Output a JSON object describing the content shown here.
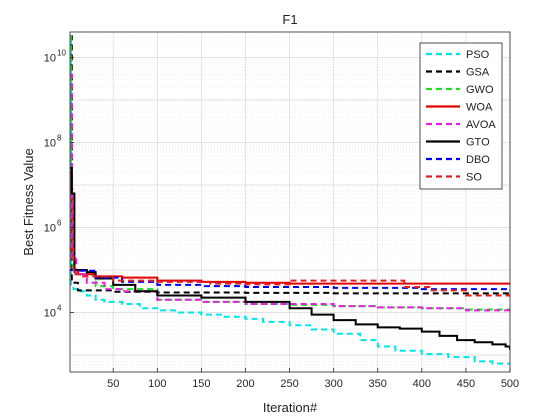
{
  "chart_data": {
    "type": "line",
    "title": "F1",
    "xlabel": "Iteration#",
    "ylabel": "Best Fitness Value",
    "xlim": [
      1,
      500
    ],
    "ylim_log10": [
      2.6,
      10.6
    ],
    "yscale": "log",
    "grid": true,
    "minor_grid": true,
    "legend_position": "top-right",
    "x_ticks": [
      50,
      100,
      150,
      200,
      250,
      300,
      350,
      400,
      450,
      500
    ],
    "x_tick_labels": [
      "50",
      "100",
      "150",
      "200",
      "250",
      "300",
      "350",
      "400",
      "450",
      "500"
    ],
    "y_tick_exponents": [
      4,
      6,
      8,
      10
    ],
    "y_tick_base": "10",
    "series": [
      {
        "name": "PSO",
        "color": "#00e5e5",
        "dash": "dashed",
        "points": [
          [
            1,
            10.4
          ],
          [
            2,
            4.6
          ],
          [
            5,
            4.55
          ],
          [
            10,
            4.5
          ],
          [
            20,
            4.4
          ],
          [
            30,
            4.3
          ],
          [
            40,
            4.25
          ],
          [
            60,
            4.2
          ],
          [
            80,
            4.1
          ],
          [
            100,
            4.05
          ],
          [
            120,
            4.0
          ],
          [
            150,
            3.95
          ],
          [
            175,
            3.9
          ],
          [
            200,
            3.85
          ],
          [
            220,
            3.78
          ],
          [
            250,
            3.7
          ],
          [
            275,
            3.6
          ],
          [
            300,
            3.5
          ],
          [
            330,
            3.35
          ],
          [
            350,
            3.2
          ],
          [
            370,
            3.1
          ],
          [
            400,
            3.02
          ],
          [
            430,
            2.95
          ],
          [
            460,
            2.85
          ],
          [
            480,
            2.8
          ],
          [
            500,
            2.78
          ]
        ]
      },
      {
        "name": "GSA",
        "color": "#000000",
        "dash": "dashed",
        "points": [
          [
            1,
            10.5
          ],
          [
            3,
            4.7
          ],
          [
            10,
            4.52
          ],
          [
            50,
            4.49
          ],
          [
            100,
            4.47
          ],
          [
            200,
            4.46
          ],
          [
            300,
            4.45
          ],
          [
            400,
            4.45
          ],
          [
            500,
            4.45
          ]
        ]
      },
      {
        "name": "GWO",
        "color": "#22dd22",
        "dash": "dashed",
        "points": [
          [
            1,
            10.5
          ],
          [
            2,
            6.9
          ],
          [
            4,
            5.0
          ],
          [
            10,
            4.9
          ],
          [
            30,
            4.62
          ],
          [
            50,
            4.55
          ],
          [
            100,
            4.3
          ],
          [
            150,
            4.25
          ],
          [
            200,
            4.2
          ],
          [
            250,
            4.18
          ],
          [
            300,
            4.15
          ],
          [
            350,
            4.12
          ],
          [
            400,
            4.1
          ],
          [
            450,
            4.07
          ],
          [
            500,
            4.05
          ]
        ]
      },
      {
        "name": "WOA",
        "color": "#e00000",
        "dash": "solid",
        "points": [
          [
            1,
            7.3
          ],
          [
            3,
            5.3
          ],
          [
            6,
            4.95
          ],
          [
            10,
            4.9
          ],
          [
            30,
            4.85
          ],
          [
            60,
            4.82
          ],
          [
            100,
            4.75
          ],
          [
            150,
            4.72
          ],
          [
            200,
            4.7
          ],
          [
            250,
            4.68
          ],
          [
            300,
            4.68
          ],
          [
            400,
            4.68
          ],
          [
            500,
            4.68
          ]
        ]
      },
      {
        "name": "AVOA",
        "color": "#e61ee6",
        "dash": "dashed",
        "points": [
          [
            1,
            9.6
          ],
          [
            3,
            5.3
          ],
          [
            8,
            4.9
          ],
          [
            20,
            4.7
          ],
          [
            40,
            4.55
          ],
          [
            60,
            4.5
          ],
          [
            100,
            4.3
          ],
          [
            150,
            4.25
          ],
          [
            200,
            4.2
          ],
          [
            250,
            4.2
          ],
          [
            300,
            4.15
          ],
          [
            350,
            4.12
          ],
          [
            400,
            4.1
          ],
          [
            450,
            4.05
          ],
          [
            500,
            4.04
          ]
        ]
      },
      {
        "name": "GTO",
        "color": "#000000",
        "dash": "solid",
        "points": [
          [
            1,
            7.4
          ],
          [
            3,
            6.8
          ],
          [
            6,
            5.0
          ],
          [
            10,
            5.0
          ],
          [
            20,
            4.95
          ],
          [
            30,
            4.8
          ],
          [
            50,
            4.65
          ],
          [
            75,
            4.5
          ],
          [
            100,
            4.4
          ],
          [
            150,
            4.35
          ],
          [
            200,
            4.25
          ],
          [
            250,
            4.1
          ],
          [
            275,
            3.95
          ],
          [
            300,
            3.82
          ],
          [
            325,
            3.72
          ],
          [
            350,
            3.65
          ],
          [
            375,
            3.62
          ],
          [
            400,
            3.55
          ],
          [
            420,
            3.45
          ],
          [
            440,
            3.35
          ],
          [
            460,
            3.3
          ],
          [
            480,
            3.25
          ],
          [
            495,
            3.2
          ],
          [
            500,
            3.12
          ]
        ]
      },
      {
        "name": "DBO",
        "color": "#0000ee",
        "dash": "dashed",
        "points": [
          [
            1,
            5.0
          ],
          [
            10,
            4.98
          ],
          [
            30,
            4.82
          ],
          [
            60,
            4.72
          ],
          [
            100,
            4.65
          ],
          [
            150,
            4.62
          ],
          [
            200,
            4.6
          ],
          [
            300,
            4.58
          ],
          [
            400,
            4.55
          ],
          [
            500,
            4.52
          ]
        ]
      },
      {
        "name": "SO",
        "color": "#e02020",
        "dash": "dashed",
        "points": [
          [
            1,
            5.5
          ],
          [
            5,
            4.9
          ],
          [
            15,
            4.85
          ],
          [
            50,
            4.75
          ],
          [
            100,
            4.72
          ],
          [
            160,
            4.68
          ],
          [
            200,
            4.66
          ],
          [
            250,
            4.75
          ],
          [
            300,
            4.75
          ],
          [
            350,
            4.75
          ],
          [
            380,
            4.6
          ],
          [
            400,
            4.6
          ],
          [
            410,
            4.52
          ],
          [
            450,
            4.4
          ],
          [
            500,
            4.38
          ]
        ]
      }
    ]
  }
}
